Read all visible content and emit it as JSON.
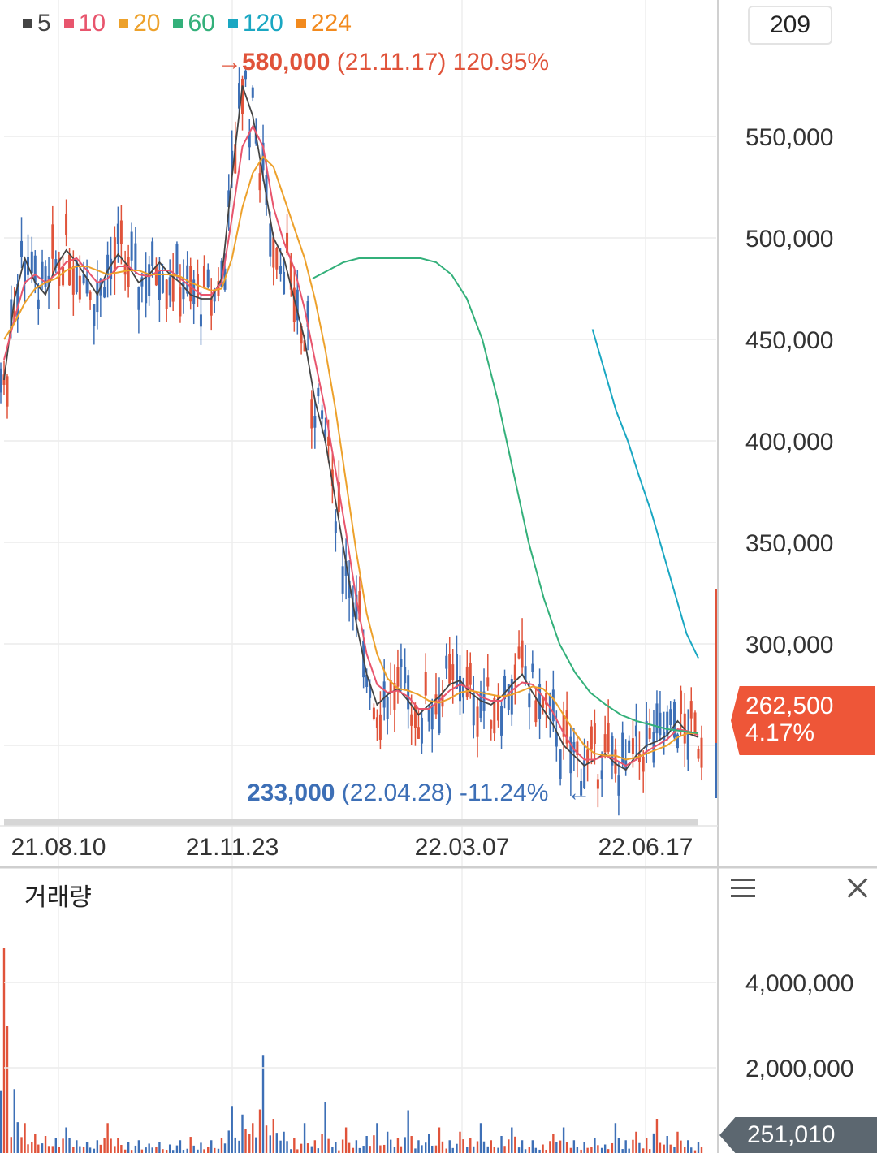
{
  "colors": {
    "up": "#e0533a",
    "down": "#3d6fb6",
    "ma5": "#444444",
    "ma10": "#e8556d",
    "ma20": "#eda12b",
    "ma60": "#33b07a",
    "ma120": "#1aa7c2",
    "ma224": "#f28a1e"
  },
  "legend": [
    {
      "label": "5",
      "color": "#444444"
    },
    {
      "label": "10",
      "color": "#e8556d"
    },
    {
      "label": "20",
      "color": "#eda12b"
    },
    {
      "label": "60",
      "color": "#33b07a"
    },
    {
      "label": "120",
      "color": "#1aa7c2"
    },
    {
      "label": "224",
      "color": "#f28a1e"
    }
  ],
  "period_count": "209",
  "high_note": {
    "arrow": "→",
    "price": "580,000",
    "date": "(21.11.17)",
    "pct": "120.95%"
  },
  "low_note": {
    "price": "233,000",
    "date": "(22.04.28)",
    "pct": "-11.24%",
    "arrow": "←"
  },
  "last_price": {
    "value": "262,500",
    "pct": "4.17%"
  },
  "volume_panel": {
    "title": "거래량",
    "last": "251,010"
  },
  "chart_data": [
    {
      "type": "candlestick",
      "x_ticks": [
        "21.08.10",
        "21.11.23",
        "22.03.07",
        "22.06.17"
      ],
      "y_ticks": [
        "550,000",
        "500,000",
        "450,000",
        "400,000",
        "350,000",
        "300,000"
      ],
      "ylim": [
        222000,
        590000
      ],
      "grid": true,
      "series": [
        {
          "name": "5",
          "values": [
            430000,
            470000,
            490000,
            478000,
            472000,
            486000,
            494000,
            488000,
            480000,
            472000,
            484000,
            492000,
            486000,
            478000,
            482000,
            488000,
            482000,
            478000,
            472000,
            470000,
            470000,
            480000,
            530000,
            575000,
            560000,
            530000,
            500000,
            490000,
            470000,
            450000,
            420000,
            400000,
            370000,
            340000,
            310000,
            285000,
            270000,
            275000,
            278000,
            272000,
            265000,
            270000,
            274000,
            280000,
            282000,
            276000,
            272000,
            270000,
            274000,
            280000,
            285000,
            276000,
            268000,
            260000,
            250000,
            245000,
            240000,
            243000,
            246000,
            241000,
            238000,
            245000,
            250000,
            252000,
            255000,
            262000,
            256000,
            254000
          ]
        },
        {
          "name": "10",
          "values": [
            440000,
            460000,
            478000,
            482000,
            478000,
            482000,
            488000,
            490000,
            484000,
            478000,
            480000,
            486000,
            486000,
            482000,
            481000,
            484000,
            484000,
            480000,
            476000,
            472000,
            472000,
            478000,
            510000,
            545000,
            555000,
            545000,
            515000,
            498000,
            485000,
            465000,
            440000,
            415000,
            385000,
            355000,
            322000,
            295000,
            280000,
            276000,
            277000,
            274000,
            268000,
            268000,
            272000,
            277000,
            280000,
            278000,
            274000,
            272000,
            272000,
            277000,
            281000,
            280000,
            274000,
            266000,
            256000,
            248000,
            243000,
            243000,
            245000,
            243000,
            240000,
            243000,
            247000,
            250000,
            253000,
            258000,
            257000,
            255000
          ]
        },
        {
          "name": "20",
          "values": [
            450000,
            458000,
            468000,
            475000,
            478000,
            480000,
            484000,
            486000,
            486000,
            484000,
            482000,
            483000,
            484000,
            484000,
            482000,
            482000,
            482000,
            481000,
            478000,
            476000,
            474000,
            475000,
            490000,
            515000,
            532000,
            540000,
            535000,
            520000,
            505000,
            490000,
            470000,
            445000,
            415000,
            380000,
            345000,
            315000,
            295000,
            283000,
            278000,
            277000,
            275000,
            272000,
            271000,
            273000,
            276000,
            277000,
            276000,
            275000,
            274000,
            275000,
            277000,
            279000,
            278000,
            273000,
            265000,
            257000,
            250000,
            246000,
            245000,
            245000,
            243000,
            244000,
            246000,
            248000,
            250000,
            254000,
            256000,
            256000
          ]
        },
        {
          "name": "60",
          "values": [
            null,
            null,
            null,
            null,
            null,
            null,
            null,
            null,
            null,
            null,
            null,
            null,
            null,
            null,
            null,
            null,
            null,
            null,
            null,
            null,
            480000,
            484000,
            488000,
            490000,
            490000,
            490000,
            490000,
            490000,
            488000,
            482000,
            470000,
            450000,
            420000,
            385000,
            350000,
            322000,
            300000,
            286000,
            276000,
            270000,
            265000,
            262000,
            260000,
            258000,
            257000,
            256000
          ]
        },
        {
          "name": "120",
          "values": [
            null,
            null,
            null,
            null,
            null,
            null,
            null,
            null,
            null,
            null,
            null,
            null,
            null,
            null,
            null,
            null,
            null,
            null,
            null,
            null,
            null,
            null,
            null,
            null,
            null,
            null,
            null,
            null,
            null,
            null,
            null,
            null,
            null,
            null,
            null,
            null,
            null,
            null,
            null,
            null,
            null,
            null,
            null,
            null,
            null,
            null,
            null,
            null,
            null,
            null,
            455000,
            435000,
            415000,
            400000,
            382000,
            365000,
            345000,
            325000,
            305000,
            293000
          ]
        }
      ]
    },
    {
      "type": "bar",
      "title": "거래량",
      "y_ticks": [
        "4,000,000",
        "2,000,000"
      ],
      "ylim": [
        0,
        5200000
      ],
      "values": [
        4800000,
        1500000,
        700000,
        450000,
        400000,
        350000,
        600000,
        300000,
        250000,
        300000,
        700000,
        350000,
        250000,
        300000,
        220000,
        260000,
        200000,
        300000,
        380000,
        240000,
        300000,
        350000,
        1100000,
        900000,
        700000,
        2300000,
        800000,
        500000,
        350000,
        700000,
        300000,
        1200000,
        250000,
        600000,
        300000,
        400000,
        700000,
        500000,
        350000,
        1000000,
        300000,
        450000,
        600000,
        300000,
        500000,
        350000,
        700000,
        300000,
        400000,
        600000,
        300000,
        300000,
        200000,
        450000,
        600000,
        300000,
        250000,
        350000,
        200000,
        700000,
        300000,
        500000,
        350000,
        800000,
        400000,
        500000,
        300000,
        251010
      ]
    }
  ]
}
